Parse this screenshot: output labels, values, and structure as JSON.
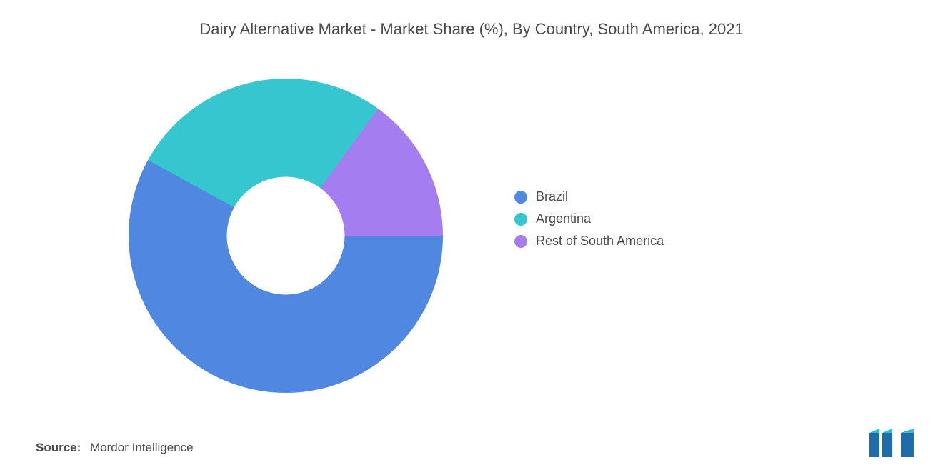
{
  "title": "Dairy Alternative Market - Market Share (%), By Country, South America, 2021",
  "chart": {
    "type": "donut",
    "start_angle_deg": 0,
    "hole_ratio": 0.375,
    "background_color": "#ffffff",
    "slices": [
      {
        "label": "Brazil",
        "value": 58,
        "color": "#5087e0"
      },
      {
        "label": "Argentina",
        "value": 27,
        "color": "#35c6cf"
      },
      {
        "label": "Rest of South America",
        "value": 15,
        "color": "#a47ef0"
      }
    ]
  },
  "legend": {
    "items": [
      {
        "label": "Brazil",
        "color": "#5087e0"
      },
      {
        "label": "Argentina",
        "color": "#35c6cf"
      },
      {
        "label": "Rest of South America",
        "color": "#a47ef0"
      }
    ],
    "font_size_pt": 13,
    "text_color": "#4a4a4a"
  },
  "source": {
    "label": "Source:",
    "value": "Mordor Intelligence"
  },
  "logo": {
    "bar_color": "#1e6caa",
    "fold_color": "#2fc1d0"
  },
  "typography": {
    "title_font_size_pt": 17,
    "title_color": "#4a4a4a",
    "body_color": "#4a4a4a"
  }
}
